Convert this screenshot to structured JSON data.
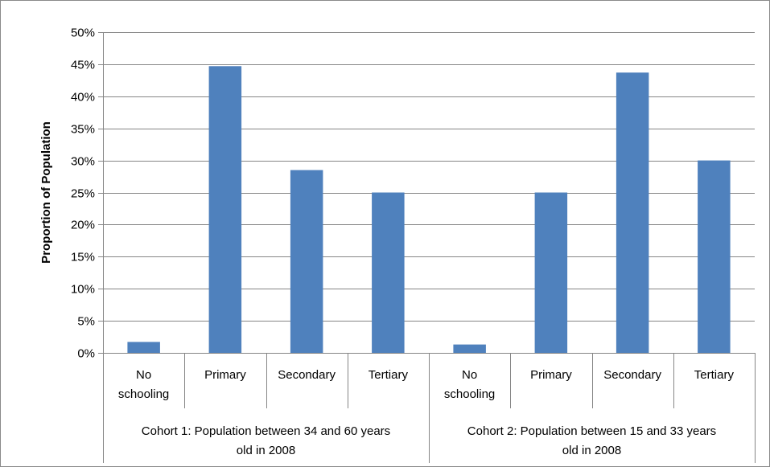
{
  "chart_data": {
    "type": "bar",
    "title": "",
    "xlabel": "",
    "ylabel": "Proportion of Population",
    "ylim": [
      0,
      50
    ],
    "ytick_step": 5,
    "ytick_suffix": "%",
    "grid": true,
    "legend": "none",
    "bar_color": "#4f81bd",
    "groups": [
      {
        "label_lines": [
          "Cohort 1: Population between 34 and 60 years",
          "old in 2008"
        ],
        "categories": [
          [
            "No",
            "schooling"
          ],
          [
            "Primary"
          ],
          [
            "Secondary"
          ],
          [
            "Tertiary"
          ]
        ],
        "values": [
          1.7,
          44.7,
          28.5,
          25.0
        ]
      },
      {
        "label_lines": [
          "Cohort 2: Population between 15 and 33 years",
          "old in 2008"
        ],
        "categories": [
          [
            "No",
            "schooling"
          ],
          [
            "Primary"
          ],
          [
            "Secondary"
          ],
          [
            "Tertiary"
          ]
        ],
        "values": [
          1.3,
          25.0,
          43.7,
          30.0
        ]
      }
    ]
  }
}
